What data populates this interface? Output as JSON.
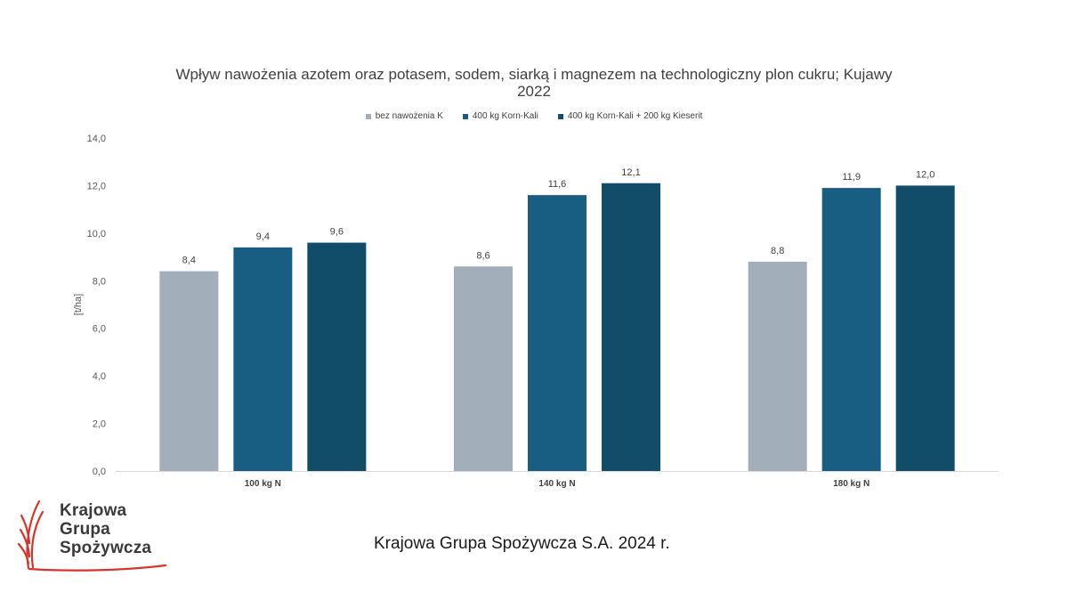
{
  "chart_data": {
    "type": "bar",
    "title": "Wpływ nawożenia azotem oraz potasem, sodem, siarką i magnezem na technologiczny plon cukru; Kujawy 2022",
    "title_lines": [
      "Wpływ nawożenia  azotem oraz potasem, sodem, siarką  i magnezem na technologiczny plon cukru; Kujawy",
      "2022"
    ],
    "xlabel": "",
    "ylabel": "[t/ha]",
    "ylim": [
      0,
      14
    ],
    "yticks": [
      "0,0",
      "2,0",
      "4,0",
      "6,0",
      "8,0",
      "10,0",
      "12,0",
      "14,0"
    ],
    "categories": [
      "100 kg N",
      "140 kg N",
      "180 kg N"
    ],
    "series": [
      {
        "name": "bez nawożenia K",
        "values": [
          8.4,
          8.6,
          8.8
        ],
        "labels": [
          "8,4",
          "8,6",
          "8,8"
        ],
        "color": "#a2afbb"
      },
      {
        "name": "400 kg Korn-Kali",
        "values": [
          9.4,
          11.6,
          11.9
        ],
        "labels": [
          "9,4",
          "11,6",
          "11,9"
        ],
        "color": "#175e82"
      },
      {
        "name": "400 kg Korn-Kali + 200 kg Kieserit",
        "values": [
          9.6,
          12.1,
          12.0
        ],
        "labels": [
          "9,6",
          "12,1",
          "12,0"
        ],
        "color": "#114c68"
      }
    ],
    "legend_position": "top",
    "grid": false
  },
  "logo": {
    "lines": [
      "Krajowa",
      "Grupa",
      "Spożywcza"
    ],
    "accent_color": "#d8342c"
  },
  "footer": {
    "text": "Krajowa Grupa Spożywcza S.A. 2024 r."
  }
}
